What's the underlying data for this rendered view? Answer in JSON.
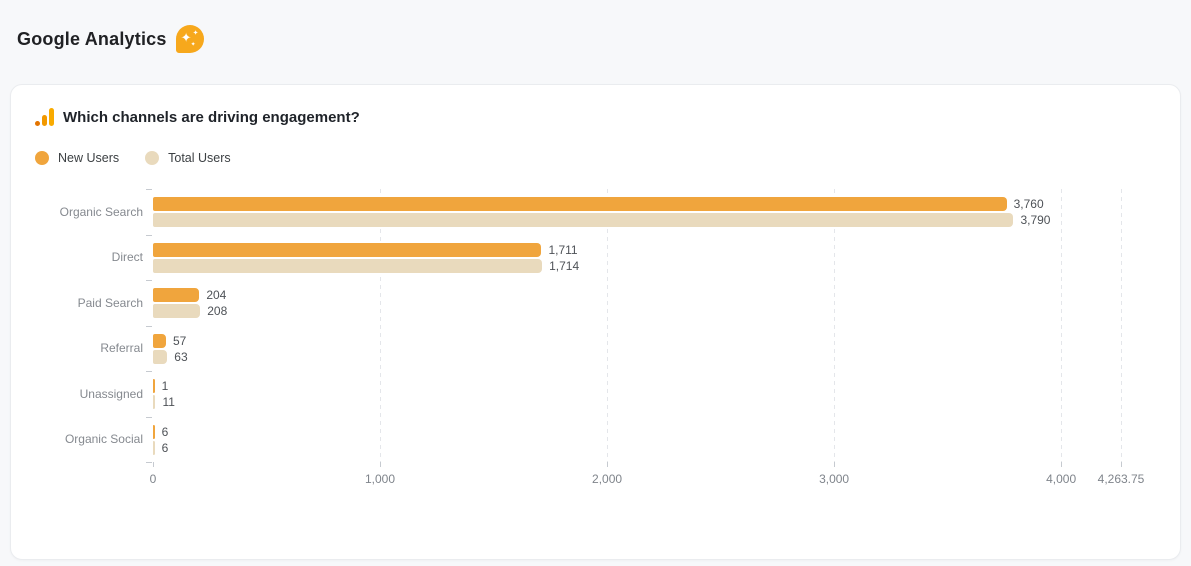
{
  "app": {
    "title": "Google Analytics",
    "badge_icon": "ai-sparkles-icon",
    "badge_color": "#F7A81C"
  },
  "card": {
    "title": "Which channels are driving engagement?",
    "title_icon": "google-analytics-logo",
    "legend": [
      {
        "label": "New Users",
        "color": "#F0A53D"
      },
      {
        "label": "Total Users",
        "color": "#E9DABD"
      }
    ]
  },
  "chart_data": {
    "type": "bar",
    "orientation": "horizontal",
    "title": "Which channels are driving engagement?",
    "categories": [
      "Organic Search",
      "Direct",
      "Paid Search",
      "Referral",
      "Unassigned",
      "Organic Social"
    ],
    "series": [
      {
        "name": "New Users",
        "color": "#F0A53D",
        "values": [
          3760,
          1711,
          204,
          57,
          1,
          6
        ]
      },
      {
        "name": "Total Users",
        "color": "#E9DABD",
        "values": [
          3790,
          1714,
          208,
          63,
          11,
          6
        ]
      }
    ],
    "value_labels": [
      [
        "3,760",
        "1,711",
        "204",
        "57",
        "1",
        "6"
      ],
      [
        "3,790",
        "1,714",
        "208",
        "63",
        "11",
        "6"
      ]
    ],
    "xlim": [
      0,
      4263.75
    ],
    "xticks": [
      0,
      1000,
      2000,
      3000,
      4000,
      4263.75
    ],
    "xtick_labels": [
      "0",
      "1,000",
      "2,000",
      "3,000",
      "4,000",
      "4,263.75"
    ],
    "grid": "vertical-dashed",
    "legend_position": "top-left",
    "accent_colors": {
      "grid": "#E4E6EA",
      "tick": "#C6CAD0",
      "value_text": "#4E5257",
      "category_text": "#85898F"
    }
  }
}
